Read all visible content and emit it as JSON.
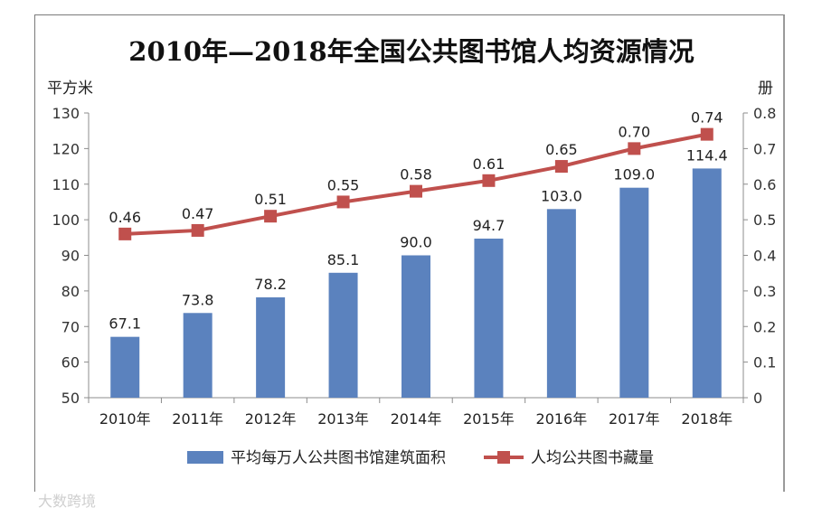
{
  "chart_data": {
    "type": "bar+line",
    "title": "2010年—2018年全国公共图书馆人均资源情况",
    "categories": [
      "2010年",
      "2011年",
      "2012年",
      "2013年",
      "2014年",
      "2015年",
      "2016年",
      "2017年",
      "2018年"
    ],
    "series": [
      {
        "name": "平均每万人公共图书馆建筑面积",
        "kind": "bar",
        "axis": "left",
        "color": "#5b82be",
        "values": [
          67.1,
          73.8,
          78.2,
          85.1,
          90.0,
          94.7,
          103.0,
          109.0,
          114.4
        ],
        "labels": [
          "67.1",
          "73.8",
          "78.2",
          "85.1",
          "90.0",
          "94.7",
          "103.0",
          "109.0",
          "114.4"
        ]
      },
      {
        "name": "人均公共图书藏量",
        "kind": "line",
        "axis": "right",
        "color": "#c0504d",
        "values": [
          0.46,
          0.47,
          0.51,
          0.55,
          0.58,
          0.61,
          0.65,
          0.7,
          0.74
        ],
        "labels": [
          "0.46",
          "0.47",
          "0.51",
          "0.55",
          "0.58",
          "0.61",
          "0.65",
          "0.70",
          "0.74"
        ]
      }
    ],
    "y_left": {
      "unit": "平方米",
      "min": 50,
      "max": 130,
      "step": 10,
      "ticks": [
        "50",
        "60",
        "70",
        "80",
        "90",
        "100",
        "110",
        "120",
        "130"
      ]
    },
    "y_right": {
      "unit": "册",
      "min": 0,
      "max": 0.8,
      "step": 0.1,
      "ticks": [
        "0",
        "0.1",
        "0.2",
        "0.3",
        "0.4",
        "0.5",
        "0.6",
        "0.7",
        "0.8"
      ]
    },
    "grid": false,
    "legend_position": "bottom"
  },
  "watermark": "大数跨境"
}
